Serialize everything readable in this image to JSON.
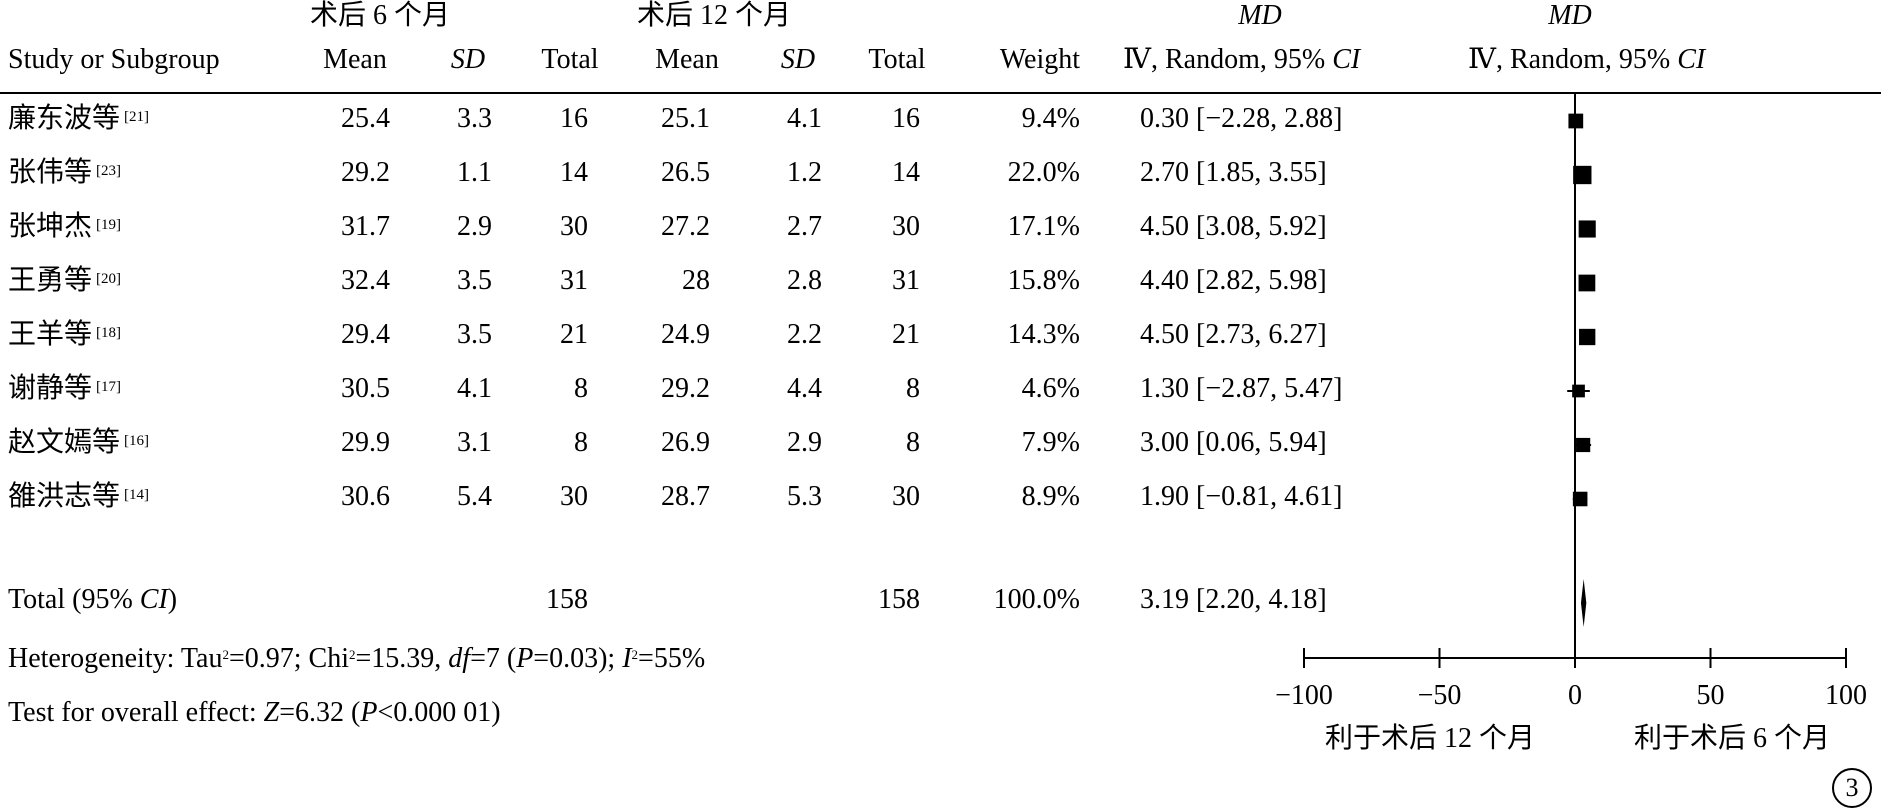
{
  "header": {
    "group1": "术后 6 个月",
    "group2": "术后 12 个月",
    "study_col": "Study or Subgroup",
    "mean": "Mean",
    "sd": "SD",
    "total": "Total",
    "weight": "Weight",
    "md_label": "MD",
    "method": "Ⅳ, Random, 95%",
    "ci": "CI"
  },
  "chart_data": {
    "type": "forest",
    "x_axis": {
      "ticks": [
        -100,
        -50,
        0,
        50,
        100
      ],
      "tick_labels": [
        "−100",
        "−50",
        "0",
        "50",
        "100"
      ],
      "range": [
        -100,
        100
      ],
      "left_label": "利于术后 12 个月",
      "right_label": "利于术后 6 个月"
    },
    "studies": [
      {
        "name": "廉东波等",
        "ref": "[21]",
        "mean1": "25.4",
        "sd1": "3.3",
        "n1": "16",
        "mean2": "25.1",
        "sd2": "4.1",
        "n2": "16",
        "weight_text": "9.4%",
        "md_text": "0.30 [−2.28, 2.88]",
        "weight": 9.4,
        "md": 0.3,
        "lo": -2.28,
        "hi": 2.88
      },
      {
        "name": "张伟等",
        "ref": "[23]",
        "mean1": "29.2",
        "sd1": "1.1",
        "n1": "14",
        "mean2": "26.5",
        "sd2": "1.2",
        "n2": "14",
        "weight_text": "22.0%",
        "md_text": "2.70 [1.85, 3.55]",
        "weight": 22.0,
        "md": 2.7,
        "lo": 1.85,
        "hi": 3.55
      },
      {
        "name": "张坤杰",
        "ref": "[19]",
        "mean1": "31.7",
        "sd1": "2.9",
        "n1": "30",
        "mean2": "27.2",
        "sd2": "2.7",
        "n2": "30",
        "weight_text": "17.1%",
        "md_text": "4.50 [3.08, 5.92]",
        "weight": 17.1,
        "md": 4.5,
        "lo": 3.08,
        "hi": 5.92
      },
      {
        "name": "王勇等",
        "ref": "[20]",
        "mean1": "32.4",
        "sd1": "3.5",
        "n1": "31",
        "mean2": "28",
        "sd2": "2.8",
        "n2": "31",
        "weight_text": "15.8%",
        "md_text": "4.40 [2.82, 5.98]",
        "weight": 15.8,
        "md": 4.4,
        "lo": 2.82,
        "hi": 5.98
      },
      {
        "name": "王羊等",
        "ref": "[18]",
        "mean1": "29.4",
        "sd1": "3.5",
        "n1": "21",
        "mean2": "24.9",
        "sd2": "2.2",
        "n2": "21",
        "weight_text": "14.3%",
        "md_text": "4.50 [2.73, 6.27]",
        "weight": 14.3,
        "md": 4.5,
        "lo": 2.73,
        "hi": 6.27
      },
      {
        "name": "谢静等",
        "ref": "[17]",
        "mean1": "30.5",
        "sd1": "4.1",
        "n1": "8",
        "mean2": "29.2",
        "sd2": "4.4",
        "n2": "8",
        "weight_text": "4.6%",
        "md_text": "1.30 [−2.87, 5.47]",
        "weight": 4.6,
        "md": 1.3,
        "lo": -2.87,
        "hi": 5.47
      },
      {
        "name": "赵文嫣等",
        "ref": "[16]",
        "mean1": "29.9",
        "sd1": "3.1",
        "n1": "8",
        "mean2": "26.9",
        "sd2": "2.9",
        "n2": "8",
        "weight_text": "7.9%",
        "md_text": "3.00 [0.06, 5.94]",
        "weight": 7.9,
        "md": 3.0,
        "lo": 0.06,
        "hi": 5.94
      },
      {
        "name": "雒洪志等",
        "ref": "[14]",
        "mean1": "30.6",
        "sd1": "5.4",
        "n1": "30",
        "mean2": "28.7",
        "sd2": "5.3",
        "n2": "30",
        "weight_text": "8.9%",
        "md_text": "1.90 [−0.81, 4.61]",
        "weight": 8.9,
        "md": 1.9,
        "lo": -0.81,
        "hi": 4.61
      }
    ],
    "total": {
      "label_pre": "Total (95% ",
      "label_ci": "CI",
      "label_post": ")",
      "n1": "158",
      "n2": "158",
      "weight_text": "100.0%",
      "md_text": "3.19 [2.20, 4.18]",
      "md": 3.19,
      "lo": 2.2,
      "hi": 4.18
    }
  },
  "heterogeneity": {
    "p1": "Heterogeneity: Tau",
    "p2": "2",
    "p3": "=0.97; Chi",
    "p4": "2",
    "p5": "=15.39, ",
    "p6": "df",
    "p7": "=7 (",
    "p8": "P",
    "p9": "=0.03); ",
    "p10": "I",
    "p11": "2",
    "p12": "=55%"
  },
  "overall": {
    "p1": "Test for overall effect: ",
    "p2": "Z",
    "p3": "=6.32 (",
    "p4": "P",
    "p5": "<0.000 01)"
  },
  "panel_label": "3"
}
